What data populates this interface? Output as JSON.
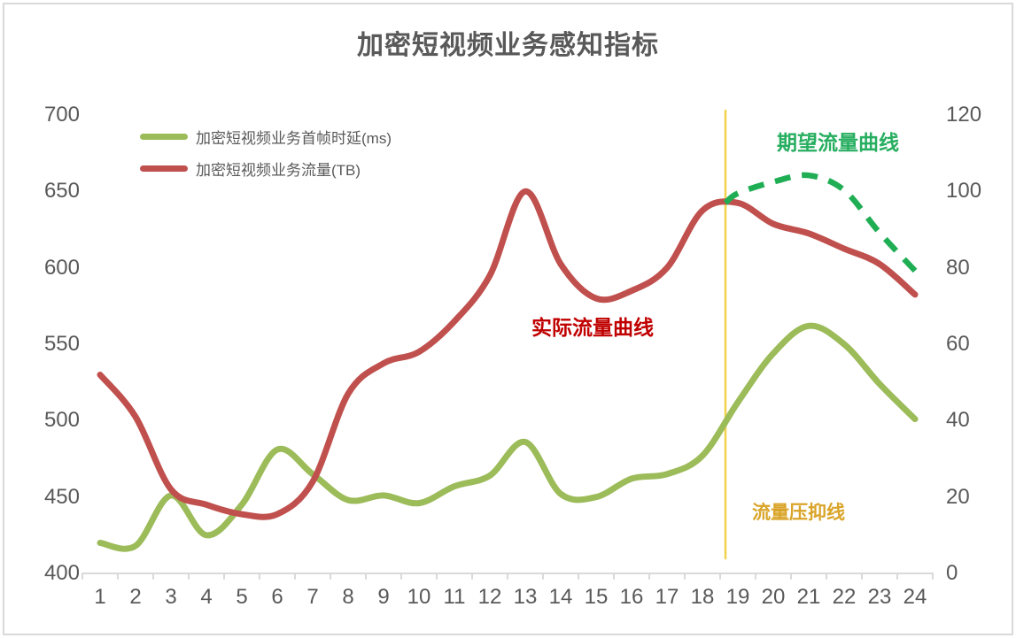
{
  "title": "加密短视频业务感知指标",
  "legend": {
    "items": [
      {
        "label": "加密短视频业务首帧时延(ms)"
      },
      {
        "label": "加密短视频业务流量(TB)"
      }
    ]
  },
  "annotations": {
    "actual_label": "实际流量曲线",
    "expected_label": "期望流量曲线",
    "suppression_label": "流量压抑线"
  },
  "colors": {
    "delay_line": "#9CBB59",
    "traffic_line": "#C0504D",
    "expected_line": "#1FAE54",
    "suppression_line": "#F2D24B",
    "actual_text": "#C00000",
    "expected_text": "#27AE60",
    "suppression_text": "#D9A428",
    "axis_text": "#595959",
    "axis_line": "#D9D9D9",
    "title_text": "#595959"
  },
  "chart_data": {
    "type": "line",
    "title": "加密短视频业务感知指标",
    "x": [
      1,
      2,
      3,
      4,
      5,
      6,
      7,
      8,
      9,
      10,
      11,
      12,
      13,
      14,
      15,
      16,
      17,
      18,
      19,
      20,
      21,
      22,
      23,
      24
    ],
    "series": [
      {
        "name": "加密短视频业务首帧时延(ms)",
        "axis": "left",
        "style": "solid",
        "color": "#9CBB59",
        "values": [
          420,
          418,
          451,
          425,
          445,
          481,
          465,
          448,
          451,
          446,
          457,
          464,
          486,
          452,
          450,
          462,
          465,
          477,
          512,
          544,
          562,
          550,
          524,
          501
        ]
      },
      {
        "name": "加密短视频业务流量(TB)",
        "axis": "right",
        "style": "solid",
        "color": "#C0504D",
        "values": [
          52,
          41,
          22,
          18,
          15.5,
          15.5,
          24,
          47,
          55,
          58,
          66,
          78,
          100,
          81,
          72,
          74,
          80,
          95,
          97,
          91.5,
          89,
          85,
          81,
          73
        ]
      },
      {
        "name": "期望流量曲线",
        "axis": "right",
        "style": "dashed",
        "color": "#1FAE54",
        "points": [
          [
            18.65,
            97
          ],
          [
            19,
            99.5
          ],
          [
            20,
            102.5
          ],
          [
            21,
            104.2
          ],
          [
            22,
            100.3
          ],
          [
            23,
            89.2
          ],
          [
            24.18,
            77.5
          ]
        ]
      }
    ],
    "left_axis": {
      "min": 400,
      "max": 700,
      "ticks": [
        400,
        450,
        500,
        550,
        600,
        650,
        700
      ]
    },
    "right_axis": {
      "min": 0,
      "max": 120,
      "ticks": [
        0,
        20,
        40,
        60,
        80,
        100,
        120
      ]
    },
    "x_axis": {
      "min": 1,
      "max": 24
    },
    "suppression_line_x": 18.65,
    "grid": false,
    "legend_position": "upper-left"
  }
}
